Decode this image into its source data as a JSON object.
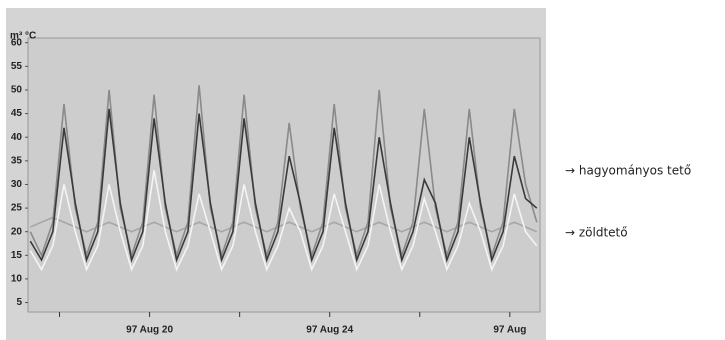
{
  "chart_data": {
    "type": "line",
    "y_label": "m³ °C",
    "annotations": [
      "→ hagyományos tető",
      "→ zöldtető"
    ],
    "xlim": [
      17.3,
      28.67
    ],
    "xticks": [
      {
        "value": 20,
        "label": "97 Aug 20"
      },
      {
        "value": 24,
        "label": "97 Aug 24"
      },
      {
        "value": 28,
        "label": "97 Aug"
      }
    ],
    "xminorticks": [
      18,
      22,
      26
    ],
    "ylim": [
      3,
      61
    ],
    "yticks": [
      5,
      10,
      15,
      20,
      25,
      30,
      35,
      40,
      45,
      50,
      55,
      60
    ],
    "x": [
      17.35,
      17.6,
      17.85,
      18.1,
      18.35,
      18.6,
      18.85,
      19.1,
      19.35,
      19.6,
      19.85,
      20.1,
      20.35,
      20.6,
      20.85,
      21.1,
      21.35,
      21.6,
      21.85,
      22.1,
      22.35,
      22.6,
      22.85,
      23.1,
      23.35,
      23.6,
      23.85,
      24.1,
      24.35,
      24.6,
      24.85,
      25.1,
      25.35,
      25.6,
      25.85,
      26.1,
      26.35,
      26.6,
      26.85,
      27.1,
      27.35,
      27.6,
      27.85,
      28.1,
      28.35,
      28.6
    ],
    "series": [
      {
        "color": "#a6a6a6",
        "values": [
          21,
          22,
          23,
          22,
          21,
          20,
          21,
          22,
          21,
          20,
          21,
          22,
          21,
          20,
          21,
          22,
          21,
          20,
          21,
          22,
          21,
          20,
          21,
          22,
          21,
          20,
          21,
          22,
          21,
          20,
          21,
          22,
          21,
          20,
          21,
          22,
          21,
          20,
          21,
          22,
          21,
          20,
          21,
          22,
          21,
          20
        ]
      },
      {
        "color": "#f4f4f4",
        "values": [
          16,
          12,
          17,
          30,
          20,
          12,
          17,
          30,
          20,
          12,
          17,
          33,
          20,
          12,
          17,
          28,
          20,
          12,
          17,
          30,
          20,
          12,
          17,
          25,
          20,
          12,
          17,
          28,
          20,
          12,
          17,
          30,
          20,
          12,
          17,
          27,
          20,
          12,
          17,
          26,
          20,
          12,
          17,
          28,
          20,
          17
        ]
      },
      {
        "color": "#8a8a8a",
        "values": [
          20,
          15,
          22,
          47,
          25,
          15,
          22,
          50,
          25,
          15,
          22,
          49,
          25,
          15,
          22,
          51,
          25,
          15,
          22,
          49,
          25,
          15,
          22,
          43,
          25,
          15,
          22,
          47,
          25,
          15,
          22,
          50,
          25,
          15,
          22,
          46,
          25,
          15,
          22,
          46,
          25,
          15,
          22,
          46,
          30,
          22
        ]
      },
      {
        "color": "#3a3a3a",
        "values": [
          18,
          14,
          20,
          42,
          26,
          14,
          20,
          46,
          26,
          14,
          20,
          44,
          26,
          14,
          20,
          45,
          26,
          14,
          20,
          44,
          26,
          14,
          20,
          36,
          26,
          14,
          20,
          42,
          26,
          14,
          20,
          40,
          26,
          14,
          20,
          31,
          26,
          14,
          20,
          40,
          26,
          14,
          20,
          36,
          27,
          25
        ]
      }
    ]
  }
}
